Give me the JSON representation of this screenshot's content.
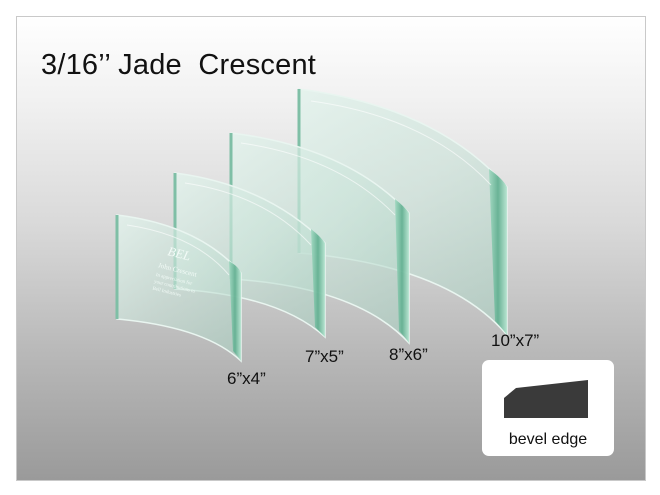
{
  "title": "3/16’’ Jade  Crescent",
  "engraving": {
    "logo": "BEL",
    "line1": "John Crescent",
    "line2": "In appreciation for",
    "line3": "your contributions to",
    "line4": "Bell Industries"
  },
  "sizes": [
    {
      "label": "6”x4”"
    },
    {
      "label": "7”x5”"
    },
    {
      "label": "8”x6”"
    },
    {
      "label": "10”x7”"
    }
  ],
  "bevel": {
    "label": "bevel edge"
  },
  "colors": {
    "glass": "#cfe9df",
    "glass_edge": "#5fae8f",
    "bevel_profile": "#3a3a3a"
  }
}
